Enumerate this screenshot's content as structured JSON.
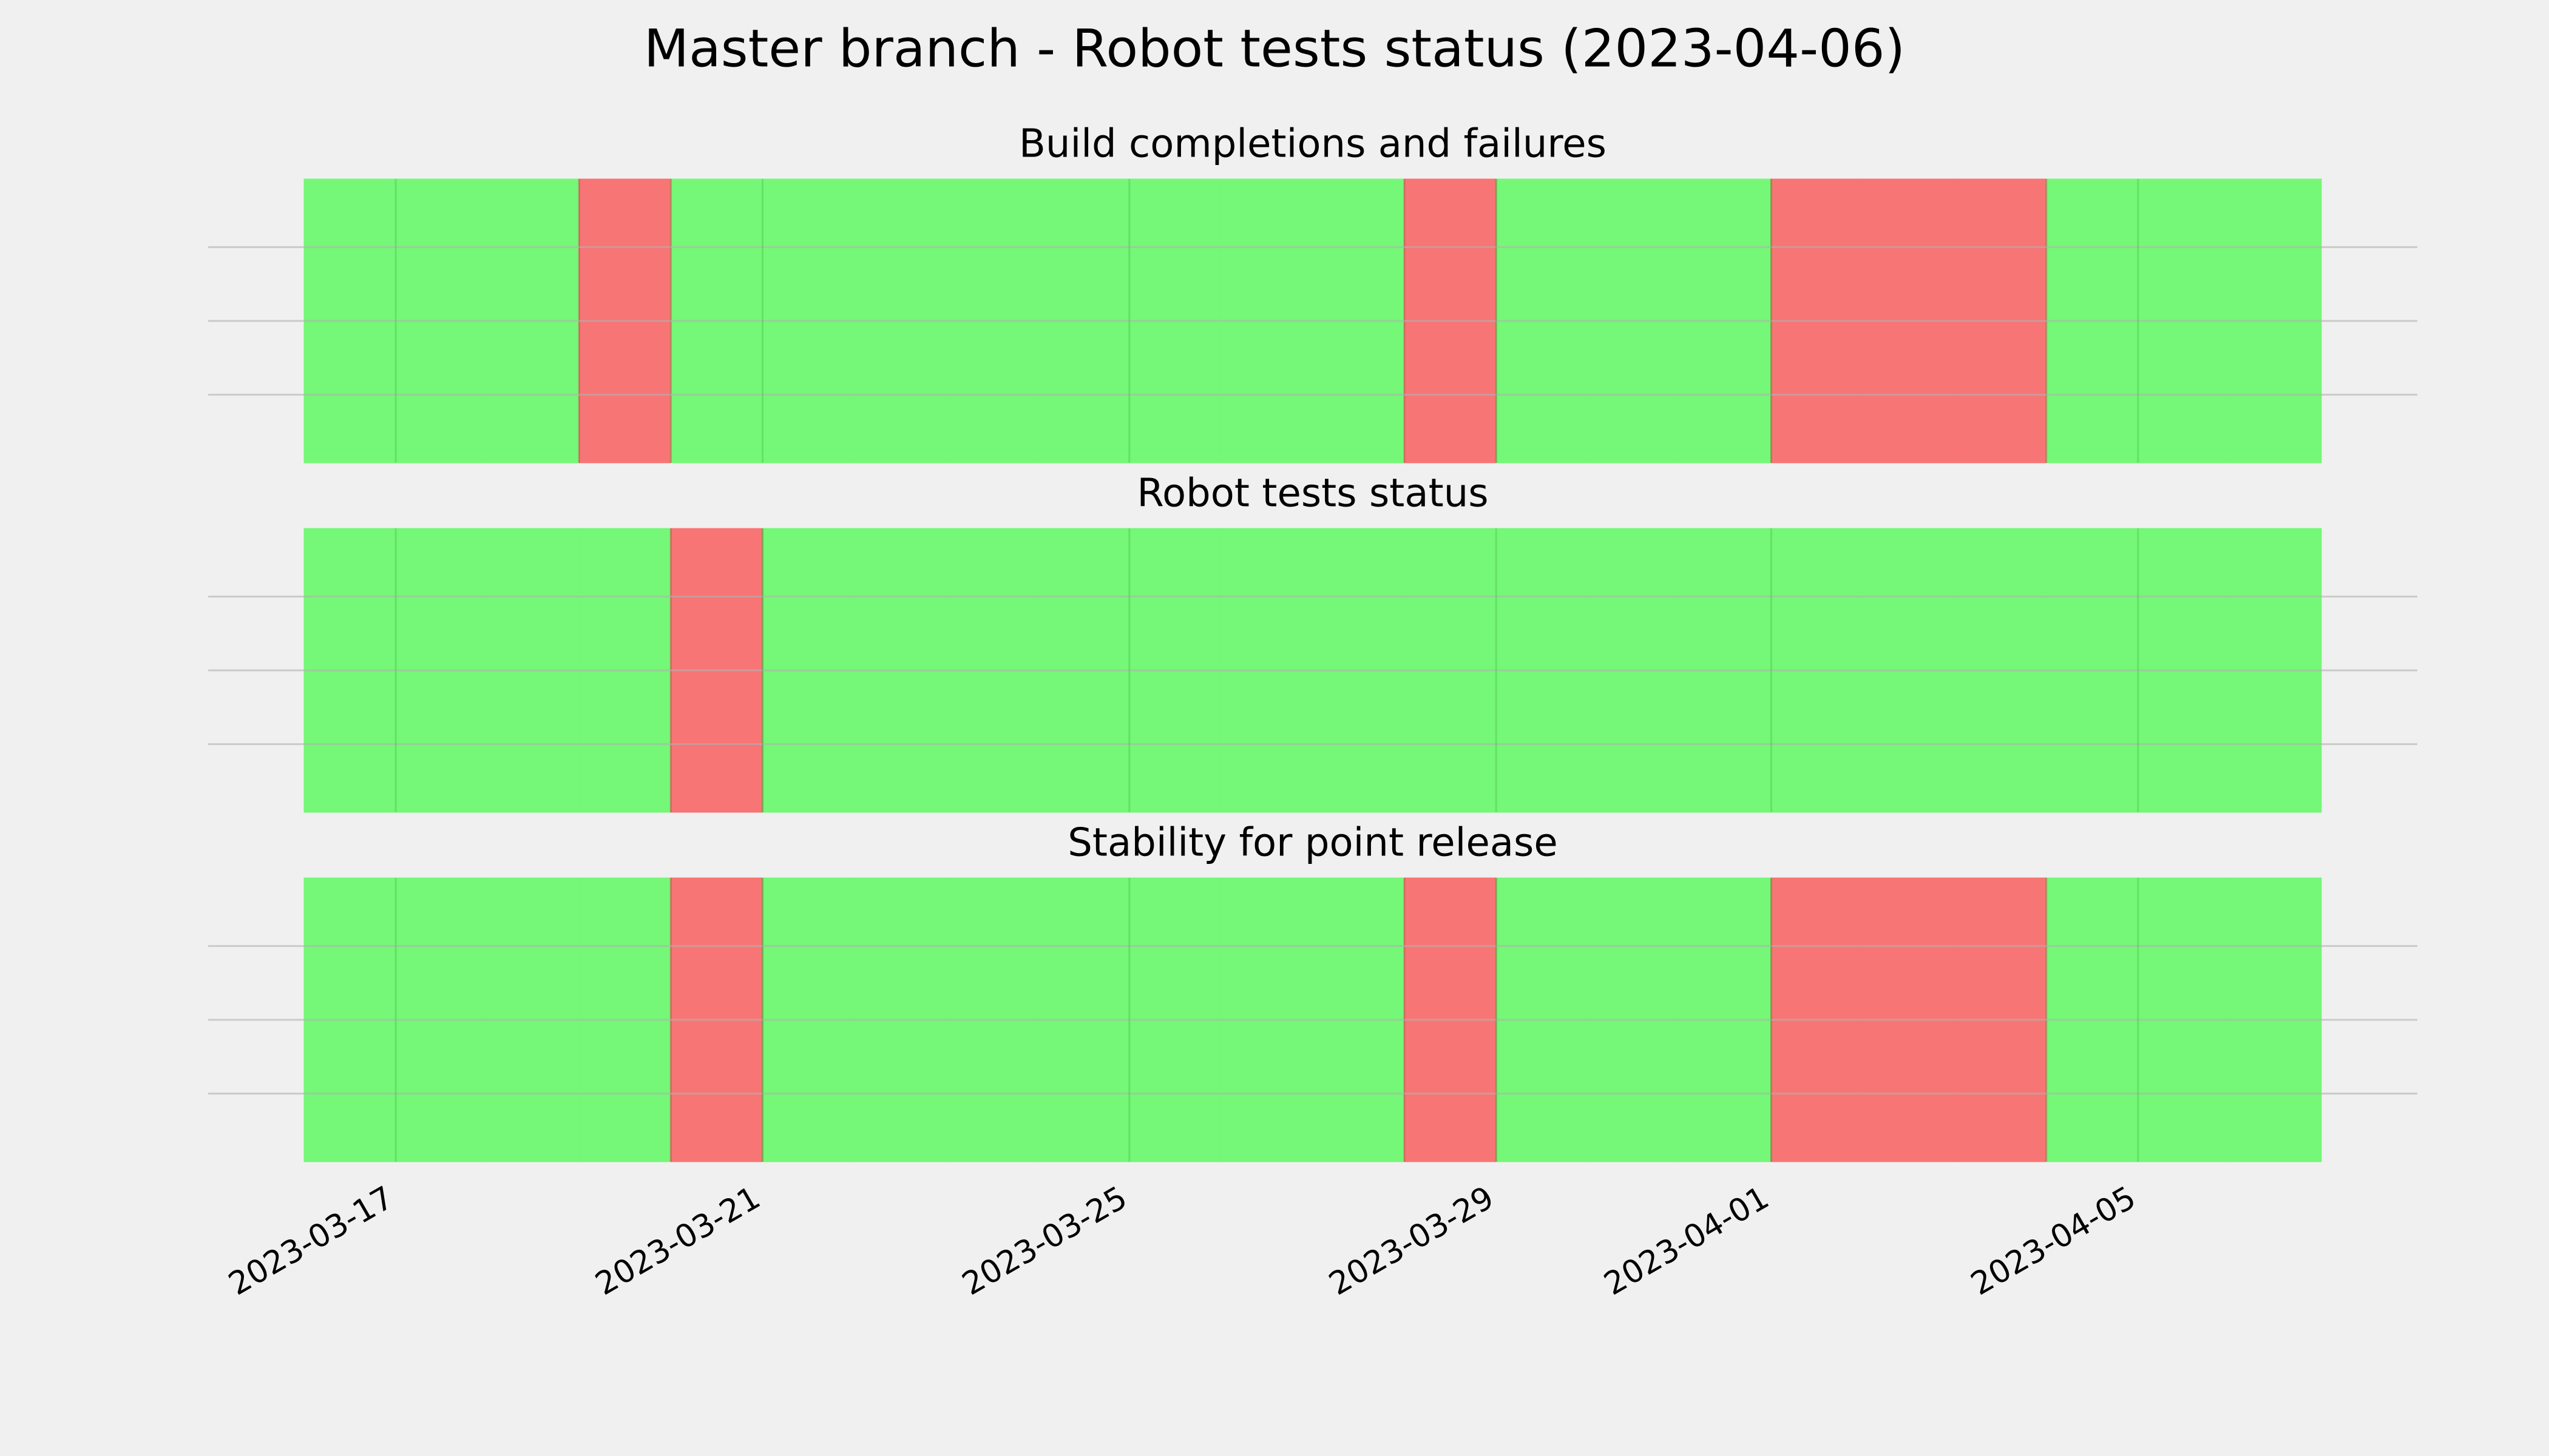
{
  "chart_data": {
    "type": "status-timeline",
    "title": "Master branch - Robot tests status (2023-04-06)",
    "bins": [
      "2023-03-16",
      "2023-03-17",
      "2023-03-18",
      "2023-03-19",
      "2023-03-20",
      "2023-03-21",
      "2023-03-22",
      "2023-03-23",
      "2023-03-24",
      "2023-03-25",
      "2023-03-26",
      "2023-03-27",
      "2023-03-28",
      "2023-03-29",
      "2023-03-30",
      "2023-03-31",
      "2023-04-01",
      "2023-04-02",
      "2023-04-03",
      "2023-04-04",
      "2023-04-05",
      "2023-04-06",
      "2023-04-07"
    ],
    "xlim": [
      "2023-03-16",
      "2023-04-07"
    ],
    "xticks": [
      "2023-03-17",
      "2023-03-21",
      "2023-03-25",
      "2023-03-29",
      "2023-04-01",
      "2023-04-05"
    ],
    "grid": true,
    "colors": [
      "#f87575",
      "#75f777"
    ],
    "panels": [
      {
        "title": "Build completions and failures",
        "values": [
          1,
          1,
          1,
          0,
          1,
          1,
          1,
          1,
          1,
          1,
          1,
          1,
          0,
          1,
          1,
          1,
          0,
          0,
          0,
          1,
          1,
          1
        ]
      },
      {
        "title": "Robot tests status",
        "values": [
          1,
          1,
          1,
          1,
          0,
          1,
          1,
          1,
          1,
          1,
          1,
          1,
          1,
          1,
          1,
          1,
          1,
          1,
          1,
          1,
          1,
          1
        ]
      },
      {
        "title": "Stability for point release",
        "values": [
          1,
          1,
          1,
          1,
          0,
          1,
          1,
          1,
          1,
          1,
          1,
          1,
          0,
          1,
          1,
          1,
          0,
          0,
          0,
          1,
          1,
          1
        ]
      }
    ]
  }
}
